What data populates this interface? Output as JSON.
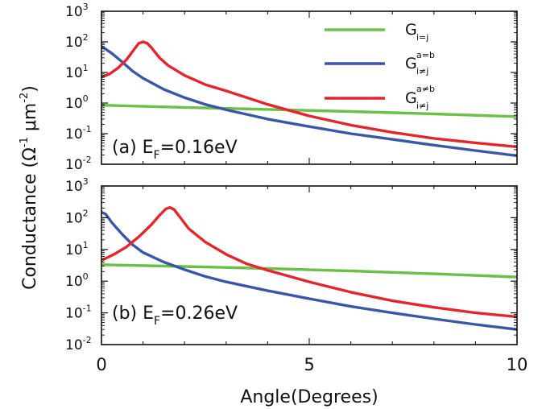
{
  "chart_data": {
    "type": "line",
    "ylabel": {
      "main": "Conductance (Ω",
      "sup1": "-1",
      "mid": " μm",
      "sup2": "-2",
      "end": ")"
    },
    "xlabel": "Angle(Degrees)",
    "xlim": [
      0,
      10
    ],
    "xticks": [
      "0",
      "5",
      "10"
    ],
    "yscale": "log",
    "ylim": [
      0.01,
      1000
    ],
    "yticks": [
      {
        "base": "10",
        "exp": "3"
      },
      {
        "base": "10",
        "exp": "2"
      },
      {
        "base": "10",
        "exp": "1"
      },
      {
        "base": "10",
        "exp": "0"
      },
      {
        "base": "10",
        "exp": "-1"
      },
      {
        "base": "10",
        "exp": "-2"
      }
    ],
    "legend": {
      "placement": "top-right",
      "entries": [
        {
          "base": "G",
          "sup": "",
          "sub": "i=j",
          "color": "#6cc04a"
        },
        {
          "base": "G",
          "sup": "a=b",
          "sub": "i≠j",
          "color": "#3a57a7"
        },
        {
          "base": "G",
          "sup": "a≠b",
          "sub": "i≠j",
          "color": "#e3262d"
        }
      ]
    },
    "panels": [
      {
        "label": {
          "prefix": "(a) E",
          "sub": "F",
          "suffix": "=0.16eV"
        },
        "series": [
          {
            "color": "#6cc04a",
            "x": [
              0,
              2,
              4,
              6,
              8,
              10
            ],
            "y": [
              0.85,
              0.72,
              0.62,
              0.53,
              0.44,
              0.36
            ]
          },
          {
            "color": "#3a57a7",
            "x": [
              0,
              0.1,
              0.25,
              0.5,
              0.75,
              1,
              1.5,
              2,
              2.5,
              3,
              4,
              5,
              6,
              7,
              8,
              9,
              10
            ],
            "y": [
              70,
              58,
              42,
              22,
              11,
              6.5,
              2.8,
              1.5,
              0.9,
              0.6,
              0.3,
              0.17,
              0.1,
              0.065,
              0.042,
              0.028,
              0.019
            ]
          },
          {
            "color": "#e3262d",
            "x": [
              0,
              0.2,
              0.4,
              0.6,
              0.8,
              0.9,
              1.0,
              1.1,
              1.2,
              1.4,
              1.6,
              2,
              2.5,
              3,
              4,
              5,
              6,
              7,
              8,
              9,
              10
            ],
            "y": [
              7,
              9,
              14,
              26,
              60,
              90,
              100,
              90,
              65,
              30,
              17,
              8,
              4,
              2.5,
              0.9,
              0.38,
              0.19,
              0.11,
              0.07,
              0.05,
              0.037
            ]
          }
        ]
      },
      {
        "label": {
          "prefix": "(b) E",
          "sub": "F",
          "suffix": "=0.26eV"
        },
        "series": [
          {
            "color": "#6cc04a",
            "x": [
              0,
              2,
              4,
              6,
              8,
              10
            ],
            "y": [
              3.3,
              2.9,
              2.5,
              2.1,
              1.7,
              1.35
            ]
          },
          {
            "color": "#3a57a7",
            "x": [
              0,
              0.1,
              0.25,
              0.5,
              0.75,
              1,
              1.5,
              2,
              2.5,
              3,
              4,
              5,
              6,
              7,
              8,
              9,
              10
            ],
            "y": [
              150,
              130,
              70,
              30,
              14,
              8,
              4,
              2.3,
              1.4,
              0.95,
              0.5,
              0.28,
              0.16,
              0.1,
              0.065,
              0.043,
              0.03
            ]
          },
          {
            "color": "#e3262d",
            "x": [
              0,
              0.3,
              0.6,
              0.9,
              1.2,
              1.4,
              1.55,
              1.65,
              1.75,
              1.9,
              2.1,
              2.5,
              3,
              3.5,
              4,
              5,
              6,
              7,
              8,
              9,
              10
            ],
            "y": [
              4.5,
              7,
              12,
              25,
              60,
              120,
              190,
              210,
              180,
              100,
              45,
              17,
              7,
              3.5,
              2.2,
              0.95,
              0.45,
              0.24,
              0.15,
              0.1,
              0.075
            ]
          }
        ]
      }
    ]
  }
}
